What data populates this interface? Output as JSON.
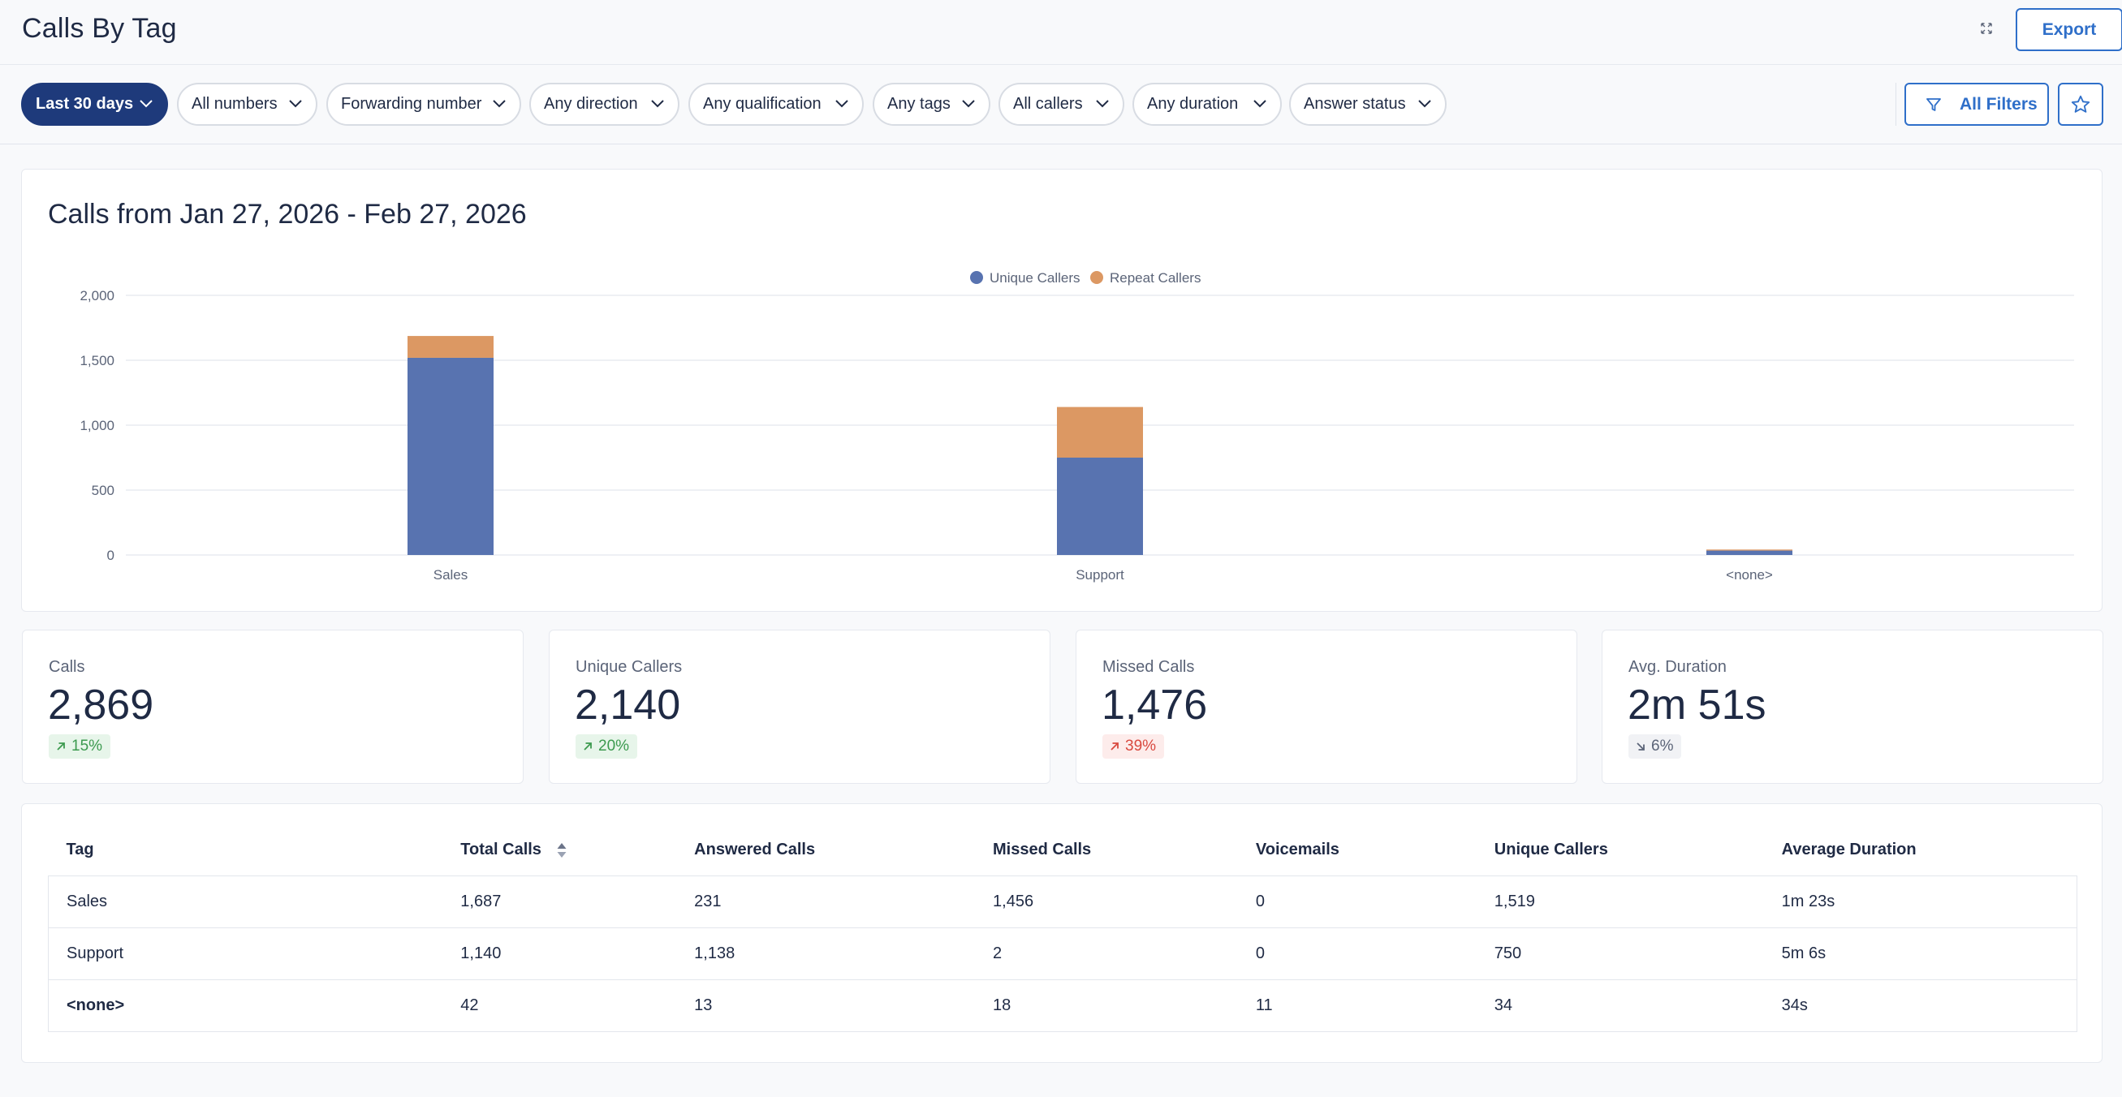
{
  "header": {
    "title": "Calls By Tag",
    "export_label": "Export"
  },
  "filters": {
    "chips": [
      "Last 30 days",
      "All numbers",
      "Forwarding number",
      "Any direction",
      "Any qualification",
      "Any tags",
      "All callers",
      "Any duration",
      "Answer status"
    ],
    "all_filters_label": "All Filters"
  },
  "chart": {
    "title": "Calls from Jan 27, 2026 - Feb 27, 2026"
  },
  "chart_data": {
    "type": "bar",
    "stacked": true,
    "categories": [
      "Sales",
      "Support",
      "<none>"
    ],
    "series": [
      {
        "name": "Unique Callers",
        "values": [
          1519,
          750,
          34
        ],
        "color": "#5873b0"
      },
      {
        "name": "Repeat Callers",
        "values": [
          168,
          390,
          8
        ],
        "color": "#dc9863"
      }
    ],
    "ylim": [
      0,
      2000
    ],
    "yticks": [
      0,
      500,
      1000,
      1500,
      2000
    ],
    "ytick_labels": [
      "0",
      "500",
      "1,000",
      "1,500",
      "2,000"
    ],
    "grid": true,
    "legend_position": "top-center"
  },
  "stats": [
    {
      "label": "Calls",
      "value": "2,869",
      "change": "15%",
      "trend": "up-good"
    },
    {
      "label": "Unique Callers",
      "value": "2,140",
      "change": "20%",
      "trend": "up-good"
    },
    {
      "label": "Missed Calls",
      "value": "1,476",
      "change": "39%",
      "trend": "up-bad"
    },
    {
      "label": "Avg. Duration",
      "value": "2m 51s",
      "change": "6%",
      "trend": "down"
    }
  ],
  "table": {
    "columns": [
      "Tag",
      "Total Calls",
      "Answered Calls",
      "Missed Calls",
      "Voicemails",
      "Unique Callers",
      "Average Duration"
    ],
    "rows": [
      [
        "Sales",
        "1,687",
        "231",
        "1,456",
        "0",
        "1,519",
        "1m 23s"
      ],
      [
        "Support",
        "1,140",
        "1,138",
        "2",
        "0",
        "750",
        "5m 6s"
      ],
      [
        "<none>",
        "42",
        "13",
        "18",
        "11",
        "34",
        "34s"
      ]
    ]
  },
  "colors": {
    "accent": "#2f6fc9",
    "active_chip": "#1e3a7b",
    "unique": "#5873b0",
    "repeat": "#dc9863"
  }
}
